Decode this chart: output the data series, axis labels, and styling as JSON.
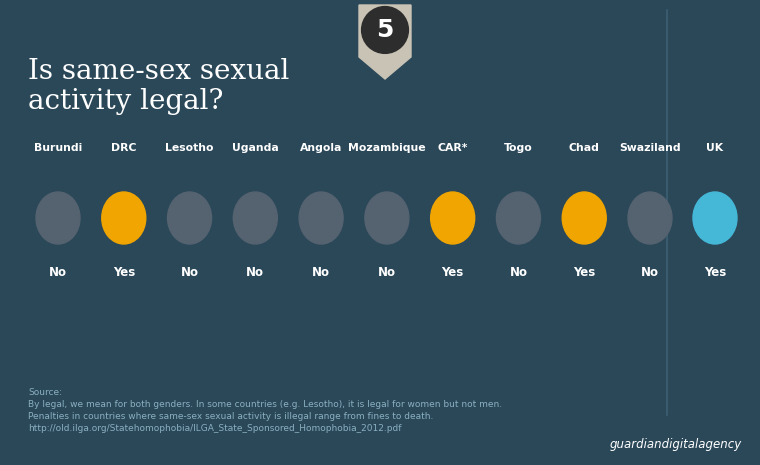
{
  "title_line1": "Is same-sex sexual",
  "title_line2": "activity legal?",
  "badge_number": "5",
  "background_color": "#2b4859",
  "divider_color": "#3d5f72",
  "countries": [
    "Burundi",
    "DRC",
    "Lesotho",
    "Uganda",
    "Angola",
    "Mozambique",
    "CAR*",
    "Togo",
    "Chad",
    "Swaziland"
  ],
  "uk_country": "UK",
  "answers": [
    "No",
    "Yes",
    "No",
    "No",
    "No",
    "No",
    "Yes",
    "No",
    "Yes",
    "No"
  ],
  "uk_answer": "Yes",
  "circle_colors": [
    "#556270",
    "#f0a500",
    "#556270",
    "#556270",
    "#556270",
    "#556270",
    "#f0a500",
    "#556270",
    "#f0a500",
    "#556270"
  ],
  "uk_circle_color": "#45b8d8",
  "text_color": "#ffffff",
  "source_color": "#8ab0c0",
  "source_text": "Source:",
  "source_line2": "By legal, we mean for both genders. In some countries (e.g. Lesotho), it is legal for women but not men.",
  "source_line3": "Penalties in countries where same-sex sexual activity is illegal range from fines to death.",
  "source_line4": "http://old.ilga.org/Statehomophobia/ILGA_State_Sponsored_Homophobia_2012.pdf",
  "footer_text": "guardiandigitalagency",
  "badge_dark": "#2d2d2d",
  "badge_light": "#c8c3b5"
}
